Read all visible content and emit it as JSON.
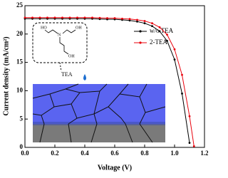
{
  "chart_data": {
    "type": "line",
    "xlabel": "Voltage (V)",
    "ylabel": "Current density (mA/cm²)",
    "x": [
      0,
      0.05,
      0.1,
      0.15,
      0.2,
      0.25,
      0.3,
      0.35,
      0.4,
      0.45,
      0.5,
      0.55,
      0.6,
      0.65,
      0.7,
      0.75,
      0.8,
      0.85,
      0.9,
      0.95,
      1.0,
      1.05,
      1.1,
      1.13
    ],
    "series": [
      {
        "name": "w/o TEA",
        "color": "#000000",
        "values": [
          22.7,
          22.7,
          22.7,
          22.7,
          22.7,
          22.7,
          22.7,
          22.7,
          22.7,
          22.7,
          22.65,
          22.6,
          22.6,
          22.5,
          22.4,
          22.2,
          21.9,
          21.4,
          20.5,
          18.8,
          15.5,
          9.5,
          0.8,
          null
        ]
      },
      {
        "name": "2-TEA",
        "color": "#e8000b",
        "values": [
          22.9,
          22.9,
          22.9,
          22.9,
          22.9,
          22.9,
          22.9,
          22.9,
          22.9,
          22.9,
          22.85,
          22.8,
          22.8,
          22.7,
          22.65,
          22.5,
          22.3,
          21.9,
          21.2,
          19.9,
          17.3,
          12.8,
          5.5,
          0.2
        ]
      }
    ],
    "xlim": [
      0,
      1.2
    ],
    "xticks": [
      {
        "value": 0,
        "label": "0.0"
      },
      0.2,
      0.4,
      0.6,
      0.8,
      {
        "value": 1,
        "label": "1.0"
      },
      1.2
    ],
    "ylim": [
      0,
      25
    ],
    "yticks": [
      0,
      5,
      10,
      15,
      20,
      25
    ],
    "legend": "upper right",
    "inset": {
      "label": "TEA",
      "atoms": [
        "HO",
        "N",
        "OH",
        "OH"
      ]
    }
  }
}
